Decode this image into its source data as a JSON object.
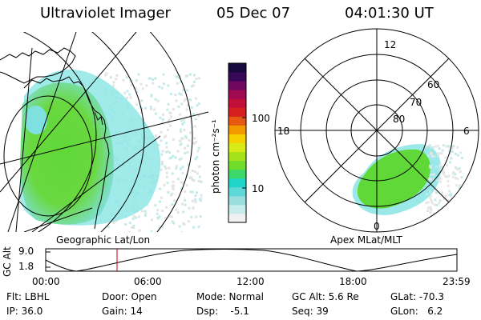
{
  "header": {
    "title": "Ultraviolet Imager",
    "date": "05 Dec 07",
    "time": "04:01:30 UT"
  },
  "geo_panel": {
    "label": "Geographic Lat/Lon"
  },
  "polar_panel": {
    "label": "Apex MLat/MLT",
    "mlt_labels": [
      "12",
      "18",
      "6",
      "0"
    ],
    "lat_labels": [
      "60",
      "70",
      "80"
    ]
  },
  "colorbar": {
    "label": "photon cm⁻²s⁻¹",
    "ticks": [
      "100",
      "10"
    ],
    "colors": [
      "#f0f0f0",
      "#c8ecec",
      "#9adede",
      "#5fd8d8",
      "#20d6c8",
      "#3dd86a",
      "#6fdc2a",
      "#a6e21a",
      "#d8ea18",
      "#f6d000",
      "#f39a00",
      "#e55a10",
      "#d62020",
      "#c0103a",
      "#a00a50",
      "#700860",
      "#3a0858",
      "#1a0840"
    ]
  },
  "altitude_plot": {
    "ylabel": "GC Alt",
    "y_ticks": [
      "9.0",
      "1.8"
    ],
    "x_ticks": [
      "00:00",
      "06:00",
      "12:00",
      "18:00",
      "23:59"
    ],
    "marker_color": "#c00000"
  },
  "footer": {
    "row1": [
      "Flt: LBHL",
      "Door: Open",
      "Mode: Normal",
      "GC Alt: 5.6 Re",
      "GLat: -70.3"
    ],
    "row2": [
      "IP: 36.0",
      "Gain: 14",
      "Dsp:    -5.1",
      "Seq: 39",
      "GLon:   6.2"
    ]
  },
  "colors": {
    "cyan": "#7fe0e0",
    "green": "#5fd838",
    "light": "#e6e6e6"
  }
}
